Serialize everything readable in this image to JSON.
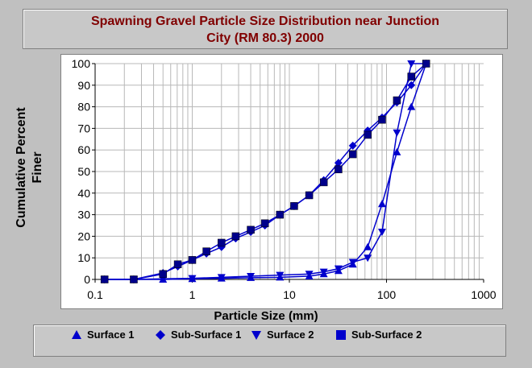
{
  "title_lines": [
    "Spawning Gravel Particle Size Distribution near Junction",
    "City  (RM 80.3) 2000"
  ],
  "ylabel_lines": [
    "Cumulative Percent",
    "Finer"
  ],
  "xlabel": "Particle Size (mm)",
  "colors": {
    "series": "#0000cc",
    "title": "#800000",
    "background": "#c0c0c0",
    "plot": "#ffffff"
  },
  "chart_data": {
    "type": "scatter",
    "title": "Spawning Gravel Particle Size Distribution near Junction City  (RM 80.3) 2000",
    "xlabel": "Particle Size (mm)",
    "ylabel": "Cumulative Percent Finer",
    "xscale": "log",
    "xlim": [
      0.1,
      1000
    ],
    "ylim": [
      0,
      100
    ],
    "xticks": [
      "0.1",
      "1",
      "10",
      "100",
      "1000"
    ],
    "yticks": [
      "0",
      "10",
      "20",
      "30",
      "40",
      "50",
      "60",
      "70",
      "80",
      "90",
      "100"
    ],
    "grid": true,
    "legend_position": "bottom",
    "series": [
      {
        "name": "Surface 1",
        "marker": "triangle-up",
        "x": [
          0.125,
          0.25,
          0.5,
          1,
          2,
          4,
          8,
          16,
          22.6,
          32,
          45,
          64,
          90,
          128,
          180,
          256
        ],
        "y": [
          0,
          0,
          0,
          0.3,
          0.5,
          0.8,
          1,
          1.5,
          2.5,
          4,
          7,
          15,
          35,
          59,
          80,
          100
        ]
      },
      {
        "name": "Sub-Surface 1",
        "marker": "diamond",
        "x": [
          0.125,
          0.25,
          0.5,
          0.71,
          1,
          1.4,
          2,
          2.8,
          4,
          5.6,
          8,
          11.2,
          16,
          22.6,
          32,
          45,
          64,
          90,
          128,
          180,
          256
        ],
        "y": [
          0,
          0,
          3,
          6,
          9,
          12,
          15,
          19,
          22,
          25,
          30,
          34,
          39,
          46,
          54,
          62,
          69,
          75,
          82,
          90,
          100
        ]
      },
      {
        "name": "Surface 2",
        "marker": "triangle-down",
        "x": [
          0.125,
          0.25,
          0.5,
          1,
          2,
          4,
          8,
          16,
          22.6,
          32,
          45,
          64,
          90,
          128,
          180,
          256
        ],
        "y": [
          0,
          0,
          0.3,
          0.5,
          1,
          1.5,
          2,
          2.5,
          3.5,
          5,
          8,
          10,
          22,
          68,
          100,
          100
        ]
      },
      {
        "name": "Sub-Surface 2",
        "marker": "square",
        "x": [
          0.125,
          0.25,
          0.5,
          0.71,
          1,
          1.4,
          2,
          2.8,
          4,
          5.6,
          8,
          11.2,
          16,
          22.6,
          32,
          45,
          64,
          90,
          128,
          180,
          256
        ],
        "y": [
          0,
          0,
          2.5,
          7,
          9,
          13,
          17,
          20,
          23,
          26,
          30,
          34,
          39,
          45,
          51,
          58,
          67,
          74,
          83,
          94,
          100
        ]
      }
    ]
  },
  "legend": [
    {
      "label": "Surface 1",
      "marker": "triangle-up"
    },
    {
      "label": "Sub-Surface 1",
      "marker": "diamond"
    },
    {
      "label": "Surface 2",
      "marker": "triangle-down"
    },
    {
      "label": "Sub-Surface 2",
      "marker": "square"
    }
  ]
}
